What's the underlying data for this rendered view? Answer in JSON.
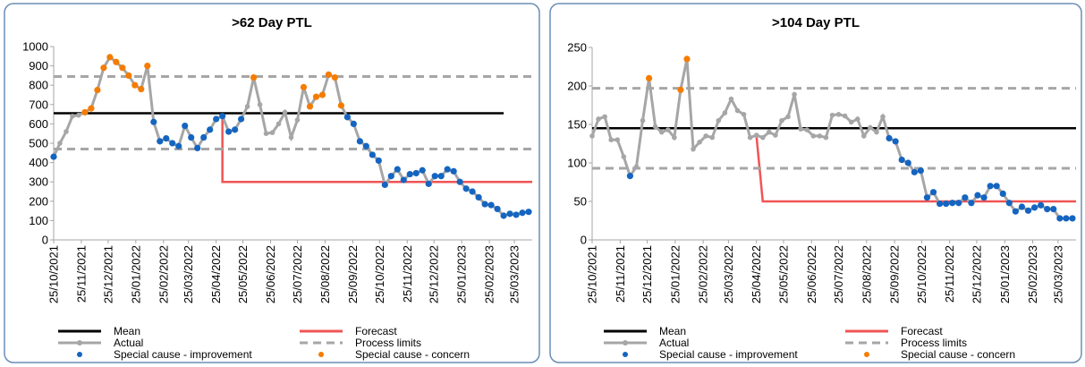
{
  "chart_data": [
    {
      "type": "line",
      "title": ">62 Day PTL",
      "x": [
        "2021-10-25",
        "2021-11-01",
        "2021-11-08",
        "2021-11-15",
        "2021-11-22",
        "2021-11-29",
        "2021-12-06",
        "2021-12-13",
        "2021-12-20",
        "2021-12-27",
        "2022-01-03",
        "2022-01-10",
        "2022-01-17",
        "2022-01-24",
        "2022-01-31",
        "2022-02-07",
        "2022-02-14",
        "2022-02-21",
        "2022-02-28",
        "2022-03-07",
        "2022-03-14",
        "2022-03-21",
        "2022-03-28",
        "2022-04-04",
        "2022-04-11",
        "2022-04-18",
        "2022-04-25",
        "2022-05-02",
        "2022-05-09",
        "2022-05-16",
        "2022-05-23",
        "2022-05-30",
        "2022-06-06",
        "2022-06-13",
        "2022-06-20",
        "2022-06-27",
        "2022-07-04",
        "2022-07-11",
        "2022-07-18",
        "2022-07-25",
        "2022-08-01",
        "2022-08-08",
        "2022-08-15",
        "2022-08-22",
        "2022-08-29",
        "2022-09-05",
        "2022-09-12",
        "2022-09-19",
        "2022-09-26",
        "2022-10-03",
        "2022-10-10",
        "2022-10-17",
        "2022-10-24",
        "2022-10-31",
        "2022-11-07",
        "2022-11-14",
        "2022-11-21",
        "2022-11-28",
        "2022-12-05",
        "2022-12-12",
        "2022-12-19",
        "2022-12-26",
        "2023-01-02",
        "2023-01-09",
        "2023-01-16",
        "2023-01-23",
        "2023-01-30",
        "2023-02-06",
        "2023-02-13",
        "2023-02-20",
        "2023-02-27",
        "2023-03-06",
        "2023-03-13",
        "2023-03-20",
        "2023-03-27",
        "2023-04-03",
        "2023-04-10"
      ],
      "xlim": [
        "2021-10-25",
        "2023-04-14"
      ],
      "xticks": [
        {
          "value": "2021-10-25",
          "label": "25/10/2021"
        },
        {
          "value": "2021-11-25",
          "label": "25/11/2021"
        },
        {
          "value": "2021-12-25",
          "label": "25/12/2021"
        },
        {
          "value": "2022-01-25",
          "label": "25/01/2022"
        },
        {
          "value": "2022-02-25",
          "label": "25/02/2022"
        },
        {
          "value": "2022-03-25",
          "label": "25/03/2022"
        },
        {
          "value": "2022-04-25",
          "label": "25/04/2022"
        },
        {
          "value": "2022-05-25",
          "label": "25/05/2022"
        },
        {
          "value": "2022-06-25",
          "label": "25/06/2022"
        },
        {
          "value": "2022-07-25",
          "label": "25/07/2022"
        },
        {
          "value": "2022-08-25",
          "label": "25/08/2022"
        },
        {
          "value": "2022-09-25",
          "label": "25/09/2022"
        },
        {
          "value": "2022-10-25",
          "label": "25/10/2022"
        },
        {
          "value": "2022-11-25",
          "label": "25/11/2022"
        },
        {
          "value": "2022-12-25",
          "label": "25/12/2022"
        },
        {
          "value": "2023-01-25",
          "label": "25/01/2023"
        },
        {
          "value": "2023-02-25",
          "label": "25/02/2023"
        },
        {
          "value": "2023-03-25",
          "label": "25/03/2023"
        }
      ],
      "ylim": [
        0,
        1000
      ],
      "yticks": [
        0,
        100,
        200,
        300,
        400,
        500,
        600,
        700,
        800,
        900,
        1000
      ],
      "grid": false,
      "series": [
        {
          "name": "Mean",
          "style": "line",
          "color": "#000000",
          "x": [
            "2021-10-25",
            "2023-03-13"
          ],
          "values": [
            655,
            655
          ]
        },
        {
          "name": "Forecast",
          "style": "line",
          "color": "#f05454",
          "x": [
            "2022-05-02",
            "2022-05-02",
            "2023-04-14"
          ],
          "values": [
            640,
            300,
            300
          ]
        },
        {
          "name": "Actual",
          "style": "line-markers",
          "color": "#a6a6a6",
          "values": [
            430,
            500,
            560,
            640,
            645,
            660,
            680,
            775,
            890,
            945,
            920,
            890,
            850,
            800,
            780,
            900,
            610,
            510,
            525,
            500,
            485,
            590,
            530,
            475,
            530,
            570,
            625,
            640,
            560,
            570,
            625,
            690,
            840,
            700,
            550,
            555,
            600,
            660,
            530,
            620,
            790,
            690,
            740,
            750,
            855,
            840,
            695,
            635,
            600,
            510,
            485,
            440,
            410,
            285,
            330,
            365,
            310,
            340,
            345,
            360,
            290,
            330,
            330,
            365,
            355,
            300,
            265,
            250,
            220,
            185,
            180,
            160,
            125,
            135,
            130,
            140,
            145
          ]
        },
        {
          "name": "Process limits",
          "style": "dashed",
          "color": "#a6a6a6",
          "x": [
            "2021-10-25",
            "2023-04-14",
            "2023-04-14",
            "2021-10-25",
            "2023-04-14"
          ],
          "values": [
            845,
            845,
            null,
            470,
            470
          ]
        },
        {
          "name": "Special cause - improvement",
          "style": "markers",
          "color": "#1565c0",
          "values": [
            430,
            null,
            null,
            null,
            null,
            null,
            null,
            null,
            null,
            null,
            null,
            null,
            null,
            null,
            null,
            null,
            610,
            510,
            525,
            500,
            485,
            590,
            530,
            475,
            530,
            570,
            625,
            640,
            560,
            570,
            625,
            null,
            null,
            null,
            null,
            null,
            null,
            null,
            null,
            null,
            null,
            null,
            null,
            null,
            null,
            null,
            null,
            635,
            600,
            510,
            485,
            440,
            410,
            285,
            330,
            365,
            310,
            340,
            345,
            360,
            290,
            330,
            330,
            365,
            355,
            300,
            265,
            250,
            220,
            185,
            180,
            160,
            125,
            135,
            130,
            140,
            145
          ]
        },
        {
          "name": "Special cause - concern",
          "style": "markers",
          "color": "#f57c00",
          "values": [
            null,
            null,
            null,
            null,
            null,
            660,
            680,
            775,
            890,
            945,
            920,
            890,
            850,
            800,
            780,
            900,
            null,
            null,
            null,
            null,
            null,
            null,
            null,
            null,
            null,
            null,
            null,
            null,
            null,
            null,
            null,
            null,
            840,
            null,
            null,
            null,
            null,
            null,
            null,
            null,
            790,
            690,
            740,
            750,
            855,
            840,
            695,
            null,
            null,
            null,
            null,
            null,
            null,
            null,
            null,
            null,
            null,
            null,
            null,
            null,
            null,
            null,
            null,
            null,
            null,
            null,
            null,
            null,
            null,
            null,
            null,
            null,
            null,
            null,
            null,
            null,
            null
          ]
        }
      ]
    },
    {
      "type": "line",
      "title": ">104 Day PTL",
      "x": [
        "2021-10-25",
        "2021-11-01",
        "2021-11-08",
        "2021-11-15",
        "2021-11-22",
        "2021-11-29",
        "2021-12-06",
        "2021-12-13",
        "2021-12-20",
        "2021-12-27",
        "2022-01-03",
        "2022-01-10",
        "2022-01-17",
        "2022-01-24",
        "2022-01-31",
        "2022-02-07",
        "2022-02-14",
        "2022-02-21",
        "2022-02-28",
        "2022-03-07",
        "2022-03-14",
        "2022-03-21",
        "2022-03-28",
        "2022-04-04",
        "2022-04-11",
        "2022-04-18",
        "2022-04-25",
        "2022-05-02",
        "2022-05-09",
        "2022-05-16",
        "2022-05-23",
        "2022-05-30",
        "2022-06-06",
        "2022-06-13",
        "2022-06-20",
        "2022-06-27",
        "2022-07-04",
        "2022-07-11",
        "2022-07-18",
        "2022-07-25",
        "2022-08-01",
        "2022-08-08",
        "2022-08-15",
        "2022-08-22",
        "2022-08-29",
        "2022-09-05",
        "2022-09-12",
        "2022-09-19",
        "2022-09-26",
        "2022-10-03",
        "2022-10-10",
        "2022-10-17",
        "2022-10-24",
        "2022-10-31",
        "2022-11-07",
        "2022-11-14",
        "2022-11-21",
        "2022-11-28",
        "2022-12-05",
        "2022-12-12",
        "2022-12-19",
        "2022-12-26",
        "2023-01-02",
        "2023-01-09",
        "2023-01-16",
        "2023-01-23",
        "2023-01-30",
        "2023-02-06",
        "2023-02-13",
        "2023-02-20",
        "2023-02-27",
        "2023-03-06",
        "2023-03-13",
        "2023-03-20",
        "2023-03-27",
        "2023-04-03",
        "2023-04-10"
      ],
      "xlim": [
        "2021-10-25",
        "2023-04-14"
      ],
      "xticks": [
        {
          "value": "2021-10-25",
          "label": "25/10/2021"
        },
        {
          "value": "2021-11-25",
          "label": "25/11/2021"
        },
        {
          "value": "2021-12-25",
          "label": "25/12/2021"
        },
        {
          "value": "2022-01-25",
          "label": "25/01/2022"
        },
        {
          "value": "2022-02-25",
          "label": "25/02/2022"
        },
        {
          "value": "2022-03-25",
          "label": "25/03/2022"
        },
        {
          "value": "2022-04-25",
          "label": "25/04/2022"
        },
        {
          "value": "2022-05-25",
          "label": "25/05/2022"
        },
        {
          "value": "2022-06-25",
          "label": "25/06/2022"
        },
        {
          "value": "2022-07-25",
          "label": "25/07/2022"
        },
        {
          "value": "2022-08-25",
          "label": "25/08/2022"
        },
        {
          "value": "2022-09-25",
          "label": "25/09/2022"
        },
        {
          "value": "2022-10-25",
          "label": "25/10/2022"
        },
        {
          "value": "2022-11-25",
          "label": "25/11/2022"
        },
        {
          "value": "2022-12-25",
          "label": "25/12/2022"
        },
        {
          "value": "2023-01-25",
          "label": "25/01/2023"
        },
        {
          "value": "2023-02-25",
          "label": "25/02/2023"
        },
        {
          "value": "2023-03-25",
          "label": "25/03/2023"
        }
      ],
      "ylim": [
        0,
        250
      ],
      "yticks": [
        0,
        50,
        100,
        150,
        200,
        250
      ],
      "grid": false,
      "series": [
        {
          "name": "Mean",
          "style": "line",
          "color": "#000000",
          "x": [
            "2021-10-25",
            "2023-04-14"
          ],
          "values": [
            145,
            145
          ]
        },
        {
          "name": "Forecast",
          "style": "line",
          "color": "#f05454",
          "x": [
            "2022-04-25",
            "2022-05-02",
            "2023-04-14"
          ],
          "values": [
            135,
            50,
            50
          ]
        },
        {
          "name": "Actual",
          "style": "line-markers",
          "color": "#a6a6a6",
          "values": [
            135,
            157,
            160,
            130,
            130,
            108,
            83,
            95,
            155,
            210,
            147,
            140,
            143,
            133,
            195,
            235,
            118,
            127,
            135,
            133,
            155,
            165,
            183,
            168,
            163,
            133,
            136,
            133,
            140,
            136,
            155,
            160,
            189,
            144,
            143,
            135,
            135,
            133,
            162,
            163,
            161,
            153,
            157,
            135,
            146,
            140,
            160,
            132,
            128,
            104,
            100,
            88,
            90,
            55,
            62,
            47,
            47,
            48,
            48,
            55,
            48,
            58,
            55,
            70,
            70,
            60,
            48,
            37,
            43,
            38,
            42,
            45,
            40,
            40,
            28,
            28,
            28
          ]
        },
        {
          "name": "Process limits",
          "style": "dashed",
          "color": "#a6a6a6",
          "x": [
            "2021-10-25",
            "2023-04-14",
            "2023-04-14",
            "2021-10-25",
            "2023-04-14"
          ],
          "values": [
            197,
            197,
            null,
            93,
            93
          ]
        },
        {
          "name": "Special cause - improvement",
          "style": "markers",
          "color": "#1565c0",
          "values": [
            null,
            null,
            null,
            null,
            null,
            null,
            83,
            null,
            null,
            null,
            null,
            null,
            null,
            null,
            null,
            null,
            null,
            null,
            null,
            null,
            null,
            null,
            null,
            null,
            null,
            null,
            null,
            null,
            null,
            null,
            null,
            null,
            null,
            null,
            null,
            null,
            null,
            null,
            null,
            null,
            null,
            null,
            null,
            null,
            null,
            null,
            null,
            132,
            128,
            104,
            100,
            88,
            90,
            55,
            62,
            47,
            47,
            48,
            48,
            55,
            48,
            58,
            55,
            70,
            70,
            60,
            48,
            37,
            43,
            38,
            42,
            45,
            40,
            40,
            28,
            28,
            28
          ]
        },
        {
          "name": "Special cause - concern",
          "style": "markers",
          "color": "#f57c00",
          "values": [
            null,
            null,
            null,
            null,
            null,
            null,
            null,
            null,
            null,
            210,
            null,
            null,
            null,
            null,
            195,
            235,
            null,
            null,
            null,
            null,
            null,
            null,
            null,
            null,
            null,
            null,
            null,
            null,
            null,
            null,
            null,
            null,
            null,
            null,
            null,
            null,
            null,
            null,
            null,
            null,
            null,
            null,
            null,
            null,
            null,
            null,
            null,
            null,
            null,
            null,
            null,
            null,
            null,
            null,
            null,
            null,
            null,
            null,
            null,
            null,
            null,
            null,
            null,
            null,
            null,
            null,
            null,
            null,
            null,
            null,
            null,
            null,
            null,
            null,
            null,
            null,
            null
          ]
        }
      ]
    }
  ]
}
